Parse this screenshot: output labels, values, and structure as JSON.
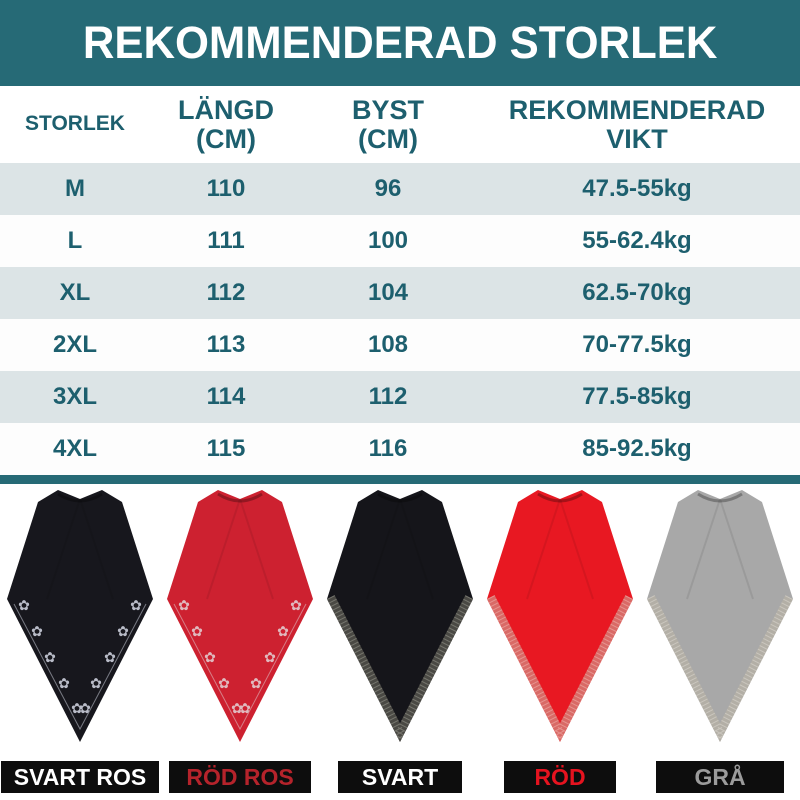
{
  "title": "REKOMMENDERAD STORLEK",
  "colors": {
    "teal": "#266a76",
    "table_text": "#1d5f6e",
    "alt_row_bg": "#dce4e6",
    "label_bar_bg": "#0d0d0d"
  },
  "size_table": {
    "columns": [
      {
        "label": "STORLEK",
        "sub": ""
      },
      {
        "label": "LÄNGD",
        "sub": "(CM)"
      },
      {
        "label": "BYST",
        "sub": "(CM)"
      },
      {
        "label": "REKOMMENDERAD",
        "sub": "VIKT"
      }
    ],
    "rows": [
      {
        "size": "M",
        "length_cm": "110",
        "bust_cm": "96",
        "weight": "47.5-55kg"
      },
      {
        "size": "L",
        "length_cm": "111",
        "bust_cm": "100",
        "weight": "55-62.4kg"
      },
      {
        "size": "XL",
        "length_cm": "112",
        "bust_cm": "104",
        "weight": "62.5-70kg"
      },
      {
        "size": "2XL",
        "length_cm": "113",
        "bust_cm": "108",
        "weight": "70-77.5kg"
      },
      {
        "size": "3XL",
        "length_cm": "114",
        "bust_cm": "112",
        "weight": "77.5-85kg"
      },
      {
        "size": "4XL",
        "length_cm": "115",
        "bust_cm": "116",
        "weight": "85-92.5kg"
      }
    ]
  },
  "products": [
    {
      "label": "SVART ROS",
      "label_color": "#ffffff",
      "fabric": "#17171d",
      "trim": "#b9bcc8",
      "sparkle": "#b9bcc8",
      "style": "rose"
    },
    {
      "label": "RÖD ROS",
      "label_color": "#b5232b",
      "fabric": "#cd2130",
      "trim": "#e0b9be",
      "sparkle": "#e0b9be",
      "style": "rose"
    },
    {
      "label": "SVART",
      "label_color": "#ffffff",
      "fabric": "#15151a",
      "trim": "#4a4944",
      "sparkle": "#9b9a92",
      "style": "band"
    },
    {
      "label": "RÖD",
      "label_color": "#e5131f",
      "fabric": "#e81822",
      "trim": "#d96a66",
      "sparkle": "#f2b4ae",
      "style": "band"
    },
    {
      "label": "GRÅ",
      "label_color": "#9b9b9b",
      "fabric": "#a8a8a8",
      "trim": "#b3afa6",
      "sparkle": "#ddd9d1",
      "style": "band"
    }
  ]
}
